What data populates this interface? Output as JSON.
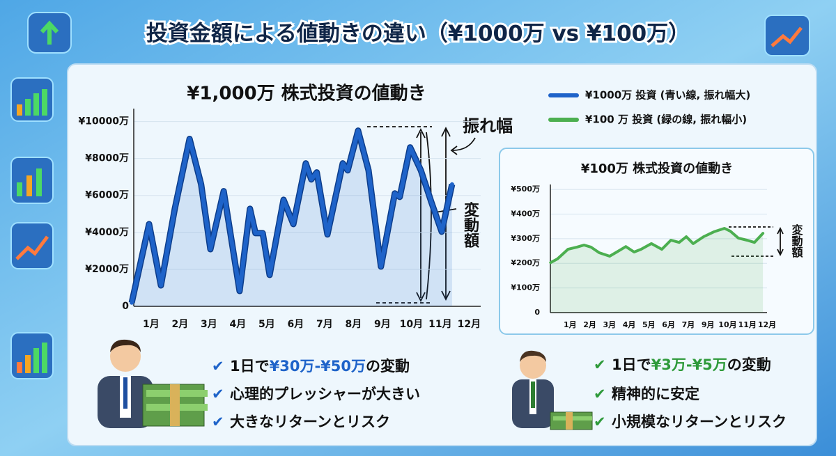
{
  "title": "投資金額による値動きの違い（¥1000万 vs ¥100万）",
  "chart_data": [
    {
      "type": "line",
      "title": "¥1,000万 株式投資の値動き",
      "x": [
        0.33,
        0.93,
        1.34,
        1.82,
        2.33,
        2.73,
        3.05,
        3.51,
        4.06,
        4.42,
        4.61,
        4.86,
        5.1,
        5.58,
        5.92,
        6.35,
        6.54,
        6.73,
        7.1,
        7.63,
        7.8,
        8.16,
        8.52,
        8.95,
        9.43,
        9.6,
        9.96,
        10.33,
        10.69,
        11.05,
        11.41
      ],
      "series": [
        {
          "name": "¥1000万 投資 (青い線, 振れ幅大)",
          "color": "#1e63c9",
          "values": [
            200,
            4450,
            1130,
            5280,
            9060,
            6600,
            3090,
            6230,
            830,
            5280,
            3960,
            3960,
            1700,
            5770,
            4450,
            7740,
            6870,
            7250,
            3890,
            7740,
            7360,
            9510,
            7360,
            2150,
            6110,
            5920,
            8600,
            7360,
            5660,
            4040,
            6600
          ]
        }
      ],
      "xlim": [
        0.4,
        12.4
      ],
      "xticks": [
        {
          "value": 1,
          "label": "1月"
        },
        {
          "value": 2,
          "label": "2月"
        },
        {
          "value": 3,
          "label": "3月"
        },
        {
          "value": 4,
          "label": "4月"
        },
        {
          "value": 5,
          "label": "5月"
        },
        {
          "value": 6,
          "label": "6月"
        },
        {
          "value": 7,
          "label": "7月"
        },
        {
          "value": 8,
          "label": "8月"
        },
        {
          "value": 9,
          "label": "9月"
        },
        {
          "value": 10,
          "label": "10月"
        },
        {
          "value": 11,
          "label": "11月"
        },
        {
          "value": 12,
          "label": "12月"
        }
      ],
      "ylim": [
        0,
        10700
      ],
      "yticks": [
        0,
        {
          "value": 2000,
          "label": "¥2000万"
        },
        {
          "value": 4000,
          "label": "¥4000万"
        },
        {
          "value": 6000,
          "label": "¥6000万"
        },
        {
          "value": 8000,
          "label": "¥8000万"
        },
        {
          "value": 10000,
          "label": "¥10000万"
        }
      ],
      "grid": true,
      "annotations": [
        "振れ幅",
        "変動額"
      ]
    },
    {
      "type": "line",
      "title": "¥100万 株式投資の値動き",
      "x": [
        0.01,
        0.36,
        0.89,
        1.35,
        1.71,
        2.06,
        2.48,
        3.01,
        3.37,
        3.83,
        4.25,
        4.6,
        5.13,
        5.66,
        6.12,
        6.54,
        6.9,
        7.25,
        7.78,
        8.31,
        8.84,
        9.13,
        9.55,
        9.98,
        10.36,
        10.79
      ],
      "series": [
        {
          "name": "¥100 万 投資 (緑の線, 振れ幅小)",
          "color": "#4caf50",
          "values": [
            203,
            218,
            257,
            266,
            274,
            266,
            243,
            229,
            246,
            268,
            246,
            257,
            280,
            257,
            294,
            285,
            308,
            280,
            308,
            328,
            342,
            331,
            302,
            294,
            285,
            322
          ]
        }
      ],
      "xlim": [
        0,
        11
      ],
      "xticks": [
        {
          "value": 1,
          "label": "1月"
        },
        {
          "value": 2,
          "label": "2月"
        },
        {
          "value": 3,
          "label": "3月"
        },
        {
          "value": 4,
          "label": "4月"
        },
        {
          "value": 5,
          "label": "5月"
        },
        {
          "value": 6,
          "label": "6月"
        },
        {
          "value": 7,
          "label": "7月"
        },
        {
          "value": 8,
          "label": "9月"
        },
        {
          "value": 9,
          "label": "10月"
        },
        {
          "value": 10,
          "label": "11月"
        },
        {
          "value": 11,
          "label": "12月"
        }
      ],
      "ylim": [
        0,
        520
      ],
      "yticks": [
        0,
        {
          "value": 100,
          "label": "¥100万"
        },
        {
          "value": 200,
          "label": "¥200万"
        },
        {
          "value": 300,
          "label": "¥300万"
        },
        {
          "value": 400,
          "label": "¥400万"
        },
        {
          "value": 500,
          "label": "¥500万"
        }
      ],
      "grid": true,
      "annotations": [
        "変動額"
      ]
    }
  ],
  "points_left": [
    [
      "1日で",
      "¥30万-¥50万",
      "の変動"
    ],
    [
      "心理的プレッシャーが大きい"
    ],
    [
      "大きなリターンとリスク"
    ]
  ],
  "points_right": [
    [
      "1日で",
      "¥3万-¥5万",
      "の変動"
    ],
    [
      "精神的に安定"
    ],
    [
      "小規模なリターンとリスク"
    ]
  ]
}
